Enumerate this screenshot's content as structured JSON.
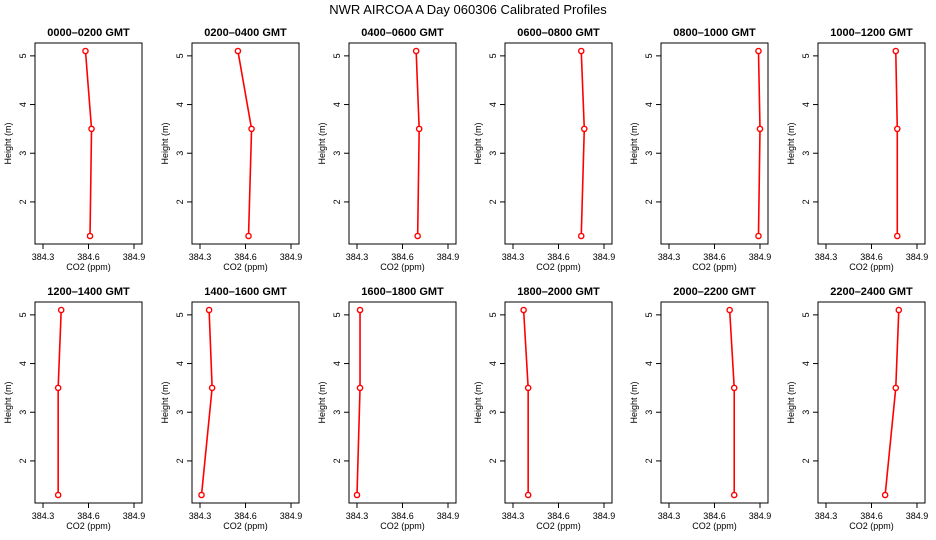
{
  "figure": {
    "title": "NWR AIRCOA A  Day 060306  Calibrated Profiles"
  },
  "chart_data": {
    "type": "line",
    "xlabel": "CO2 (ppm)",
    "ylabel": "Height (m)",
    "xlim": [
      384.3,
      384.9
    ],
    "ylim": [
      1.3,
      5.1
    ],
    "xticks": [
      "384.3",
      "384.6",
      "384.9"
    ],
    "yticks": [
      "2",
      "3",
      "4",
      "5"
    ],
    "heights": [
      1.3,
      3.5,
      5.1
    ],
    "color": "#ff0000",
    "grid": false,
    "legend": false,
    "panels": [
      {
        "title": "0000–0200 GMT",
        "co2": [
          384.61,
          384.62,
          384.58
        ]
      },
      {
        "title": "0200–0400 GMT",
        "co2": [
          384.62,
          384.64,
          384.55
        ]
      },
      {
        "title": "0400–0600 GMT",
        "co2": [
          384.7,
          384.71,
          384.69
        ]
      },
      {
        "title": "0600–0800 GMT",
        "co2": [
          384.75,
          384.77,
          384.75
        ]
      },
      {
        "title": "0800–1000 GMT",
        "co2": [
          384.89,
          384.9,
          384.89
        ]
      },
      {
        "title": "1000–1200 GMT",
        "co2": [
          384.77,
          384.77,
          384.76
        ]
      },
      {
        "title": "1200–1400 GMT",
        "co2": [
          384.4,
          384.4,
          384.42
        ]
      },
      {
        "title": "1400–1600 GMT",
        "co2": [
          384.31,
          384.38,
          384.36
        ]
      },
      {
        "title": "1600–1800 GMT",
        "co2": [
          384.3,
          384.32,
          384.32
        ]
      },
      {
        "title": "1800–2000 GMT",
        "co2": [
          384.4,
          384.4,
          384.37
        ]
      },
      {
        "title": "2000–2200 GMT",
        "co2": [
          384.73,
          384.73,
          384.7
        ]
      },
      {
        "title": "2200–2400 GMT",
        "co2": [
          384.69,
          384.76,
          384.78
        ]
      }
    ]
  }
}
